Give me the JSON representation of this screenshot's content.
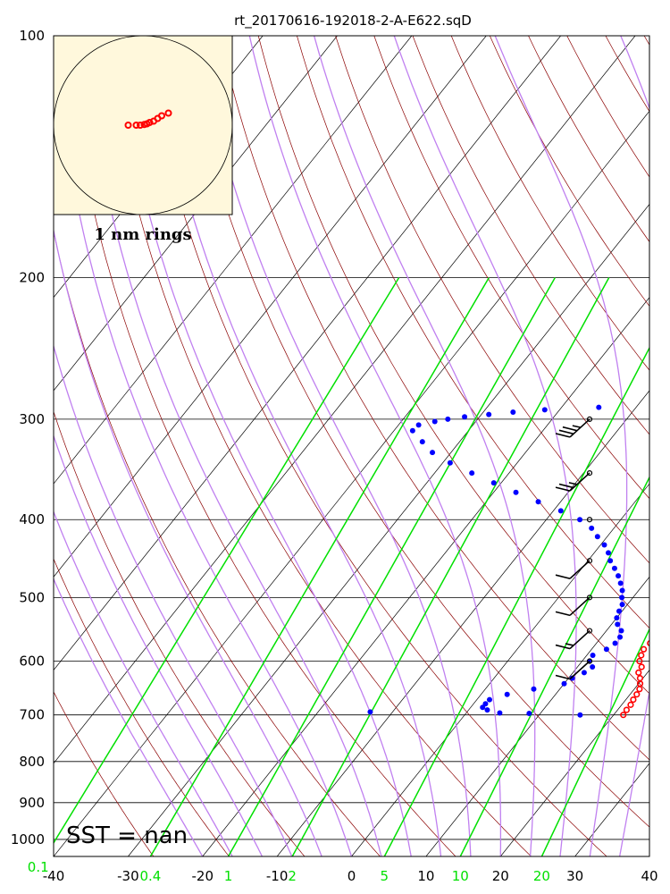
{
  "title": "rt_20170616-192018-2-A-E622.sqD",
  "sst_label": "SST =  nan",
  "hodograph": {
    "ring_label": "1 nm rings"
  },
  "colors": {
    "temperature": "#ff0000",
    "dewpoint": "#0000ff",
    "isotherm": "#000000",
    "dry_adiabat": "#8b0000",
    "moist_adiabat": "#c080f0",
    "mixing_ratio": "#00e000",
    "hodograph_bg": "#fff8dc"
  },
  "chart_data": {
    "type": "scatter",
    "subtype": "skew-T log-P diagram",
    "title": "rt_20170616-192018-2-A-E622.sqD",
    "xlim": [
      -40,
      40
    ],
    "ylim_pressure_hPa": [
      1050,
      100
    ],
    "y_scale": "log",
    "pressure_ticks": [
      100,
      200,
      300,
      400,
      500,
      600,
      700,
      800,
      900,
      1000
    ],
    "temperature_ticks": [
      -40,
      -30,
      -20,
      -10,
      0,
      10,
      20,
      30,
      40
    ],
    "mixing_ratio_ticks": [
      "0.1",
      "0.4",
      "1",
      "2",
      "5",
      "10",
      "20"
    ],
    "grid": true,
    "series": [
      {
        "key": "temperature",
        "points": [
          [
            21.3,
            700
          ],
          [
            21.2,
            690
          ],
          [
            21.2,
            680
          ],
          [
            21.0,
            670
          ],
          [
            20.9,
            660
          ],
          [
            20.7,
            650
          ],
          [
            20.2,
            640
          ],
          [
            19.6,
            630
          ],
          [
            18.8,
            620
          ],
          [
            18.6,
            610
          ],
          [
            17.7,
            600
          ],
          [
            17.3,
            590
          ],
          [
            17.0,
            580
          ],
          [
            17.2,
            570
          ],
          [
            17.4,
            560
          ],
          [
            16.8,
            550
          ],
          [
            15.8,
            540
          ],
          [
            15.1,
            530
          ],
          [
            14.9,
            520
          ],
          [
            14.3,
            510
          ],
          [
            14.0,
            500
          ],
          [
            13.6,
            490
          ],
          [
            13.1,
            480
          ],
          [
            12.7,
            470
          ],
          [
            12.4,
            460
          ],
          [
            11.8,
            450
          ],
          [
            11.0,
            440
          ],
          [
            10.5,
            430
          ],
          [
            9.8,
            420
          ],
          [
            9.4,
            410
          ],
          [
            8.8,
            400
          ],
          [
            7.5,
            390
          ],
          [
            6.3,
            380
          ],
          [
            5.0,
            370
          ],
          [
            3.6,
            360
          ],
          [
            1.9,
            350
          ],
          [
            0.8,
            340
          ],
          [
            -0.4,
            330
          ],
          [
            -1.5,
            320
          ],
          [
            -3.0,
            310
          ],
          [
            -5.0,
            300
          ],
          [
            -6.0,
            295
          ],
          [
            -7.0,
            290
          ]
        ]
      },
      {
        "key": "dewpoint",
        "points": [
          [
            15.5,
            700
          ],
          [
            8.5,
            697
          ],
          [
            4.5,
            696
          ],
          [
            -13.0,
            694
          ],
          [
            2.5,
            690
          ],
          [
            1.6,
            685
          ],
          [
            1.6,
            678
          ],
          [
            1.7,
            670
          ],
          [
            3.5,
            660
          ],
          [
            6.5,
            650
          ],
          [
            10.0,
            640
          ],
          [
            10.5,
            630
          ],
          [
            11.5,
            620
          ],
          [
            12.0,
            610
          ],
          [
            11.0,
            600
          ],
          [
            10.8,
            590
          ],
          [
            12.0,
            580
          ],
          [
            12.5,
            570
          ],
          [
            12.5,
            560
          ],
          [
            12.0,
            550
          ],
          [
            10.8,
            540
          ],
          [
            10.0,
            530
          ],
          [
            9.6,
            520
          ],
          [
            9.3,
            510
          ],
          [
            8.5,
            500
          ],
          [
            7.8,
            490
          ],
          [
            6.8,
            480
          ],
          [
            5.7,
            470
          ],
          [
            4.4,
            460
          ],
          [
            3.0,
            450
          ],
          [
            1.9,
            440
          ],
          [
            0.5,
            430
          ],
          [
            -1.3,
            420
          ],
          [
            -3.0,
            410
          ],
          [
            -5.5,
            400
          ],
          [
            -9.0,
            390
          ],
          [
            -13.0,
            380
          ],
          [
            -17.0,
            370
          ],
          [
            -21.0,
            360
          ],
          [
            -25.0,
            350
          ],
          [
            -29.0,
            340
          ],
          [
            -32.5,
            330
          ],
          [
            -35.0,
            320
          ],
          [
            -37.5,
            310
          ],
          [
            -37.3,
            305
          ],
          [
            -35.5,
            302
          ],
          [
            -34.0,
            300
          ],
          [
            -32.0,
            298
          ],
          [
            -29.0,
            296
          ],
          [
            -26.0,
            294
          ],
          [
            -22.0,
            292
          ],
          [
            -15.0,
            290
          ]
        ]
      }
    ],
    "wind_barbs": [
      {
        "pressure": 300,
        "speed_kt": 25
      },
      {
        "pressure": 350,
        "speed_kt": 15
      },
      {
        "pressure": 400,
        "speed_kt": 0
      },
      {
        "pressure": 450,
        "speed_kt": 10
      },
      {
        "pressure": 500,
        "speed_kt": 10
      },
      {
        "pressure": 550,
        "speed_kt": 5
      },
      {
        "pressure": 600,
        "speed_kt": 10
      }
    ],
    "hodograph_points": [
      [
        -0.2,
        0.0
      ],
      [
        0.1,
        0.05
      ],
      [
        0.3,
        0.1
      ],
      [
        0.5,
        0.2
      ],
      [
        0.8,
        0.3
      ],
      [
        1.1,
        0.5
      ],
      [
        1.4,
        0.7
      ],
      [
        1.9,
        0.9
      ],
      [
        -1.1,
        0.0
      ],
      [
        -0.5,
        0.0
      ]
    ]
  }
}
